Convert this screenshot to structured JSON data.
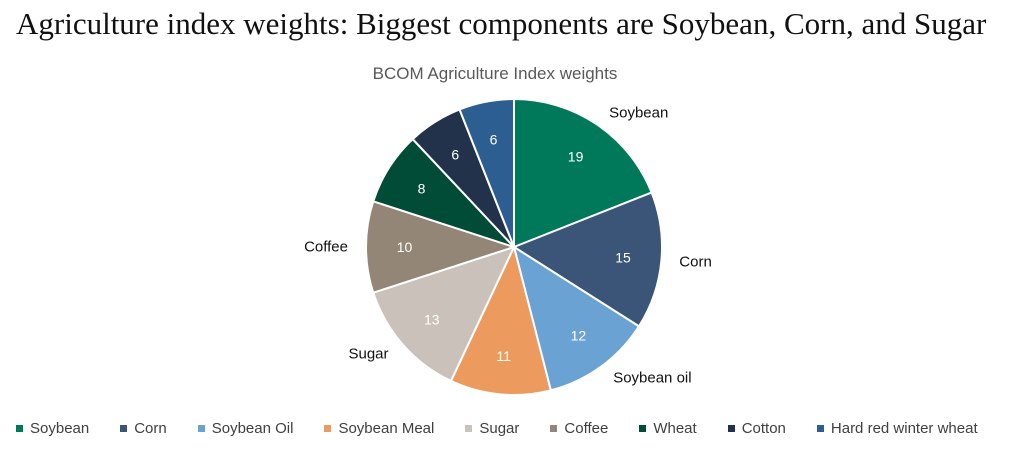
{
  "headline": "Agriculture index weights: Biggest components are Soybean, Corn, and Sugar",
  "chart_data": {
    "type": "pie",
    "title": "BCOM Agriculture Index weights",
    "slices": [
      {
        "value": 19,
        "label": "19",
        "callout": "Soybean",
        "color": "#00785A"
      },
      {
        "value": 15,
        "label": "15",
        "callout": "Corn",
        "color": "#3A5577"
      },
      {
        "value": 12,
        "label": "12",
        "callout": "Soybean oil",
        "color": "#6BA2D4"
      },
      {
        "value": 11,
        "label": "11",
        "callout": "",
        "color": "#EC9A5E"
      },
      {
        "value": 13,
        "label": "13",
        "callout": "Sugar",
        "color": "#C9C1BA"
      },
      {
        "value": 10,
        "label": "10",
        "callout": "Coffee",
        "color": "#938677"
      },
      {
        "value": 8,
        "label": "8",
        "callout": "",
        "color": "#004C36"
      },
      {
        "value": 6,
        "label": "6",
        "callout": "",
        "color": "#22324A"
      },
      {
        "value": 6,
        "label": "6",
        "callout": "",
        "color": "#2C5E92"
      }
    ],
    "legend": [
      {
        "label": "Soybean",
        "color": "#00785A"
      },
      {
        "label": "Corn",
        "color": "#3A5577"
      },
      {
        "label": "Soybean Oil",
        "color": "#6BA2D4"
      },
      {
        "label": "Soybean Meal",
        "color": "#EC9A5E"
      },
      {
        "label": "Sugar",
        "color": "#C9C1BA"
      },
      {
        "label": "Coffee",
        "color": "#938677"
      },
      {
        "label": "Wheat",
        "color": "#004C36"
      },
      {
        "label": "Cotton",
        "color": "#22324A"
      },
      {
        "label": "Hard red winter wheat",
        "color": "#2C5E92"
      }
    ],
    "legend_position": "bottom"
  }
}
